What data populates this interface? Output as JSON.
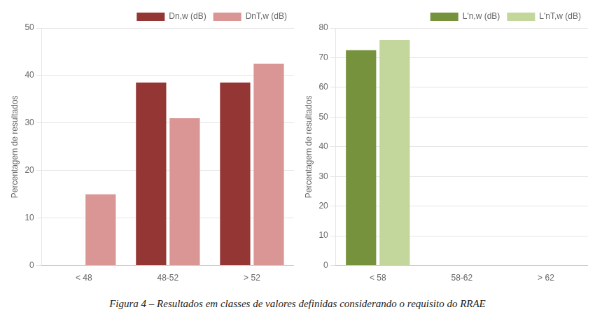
{
  "title": "Figura 4 – Resultados em classes de valores definidas considerando o requisito do RRAE",
  "chart_data": [
    {
      "type": "bar",
      "categories": [
        "< 48",
        "48-52",
        "> 52"
      ],
      "series": [
        {
          "name": "Dn,w (dB)",
          "color": "#943634",
          "values": [
            0,
            38.5,
            38.5
          ]
        },
        {
          "name": "DnT,w (dB)",
          "color": "#D99694",
          "values": [
            15,
            31,
            42.5
          ]
        }
      ],
      "ylabel": "Percentagem de resultados",
      "ylim": [
        0,
        50
      ],
      "yticks": [
        0,
        10,
        20,
        30,
        40,
        50
      ],
      "grid": true,
      "legend": "upper right"
    },
    {
      "type": "bar",
      "categories": [
        "< 58",
        "58-62",
        "> 62"
      ],
      "series": [
        {
          "name": "L'n,w (dB)",
          "color": "#76923C",
          "values": [
            72.5,
            0,
            0
          ]
        },
        {
          "name": "L'nT,w (dB)",
          "color": "#C3D69B",
          "values": [
            76,
            0,
            0
          ]
        }
      ],
      "ylabel": "Percentagem de resultados",
      "ylim": [
        0,
        80
      ],
      "yticks": [
        0,
        10,
        20,
        30,
        40,
        50,
        60,
        70,
        80
      ],
      "grid": true,
      "legend": "upper right"
    }
  ]
}
